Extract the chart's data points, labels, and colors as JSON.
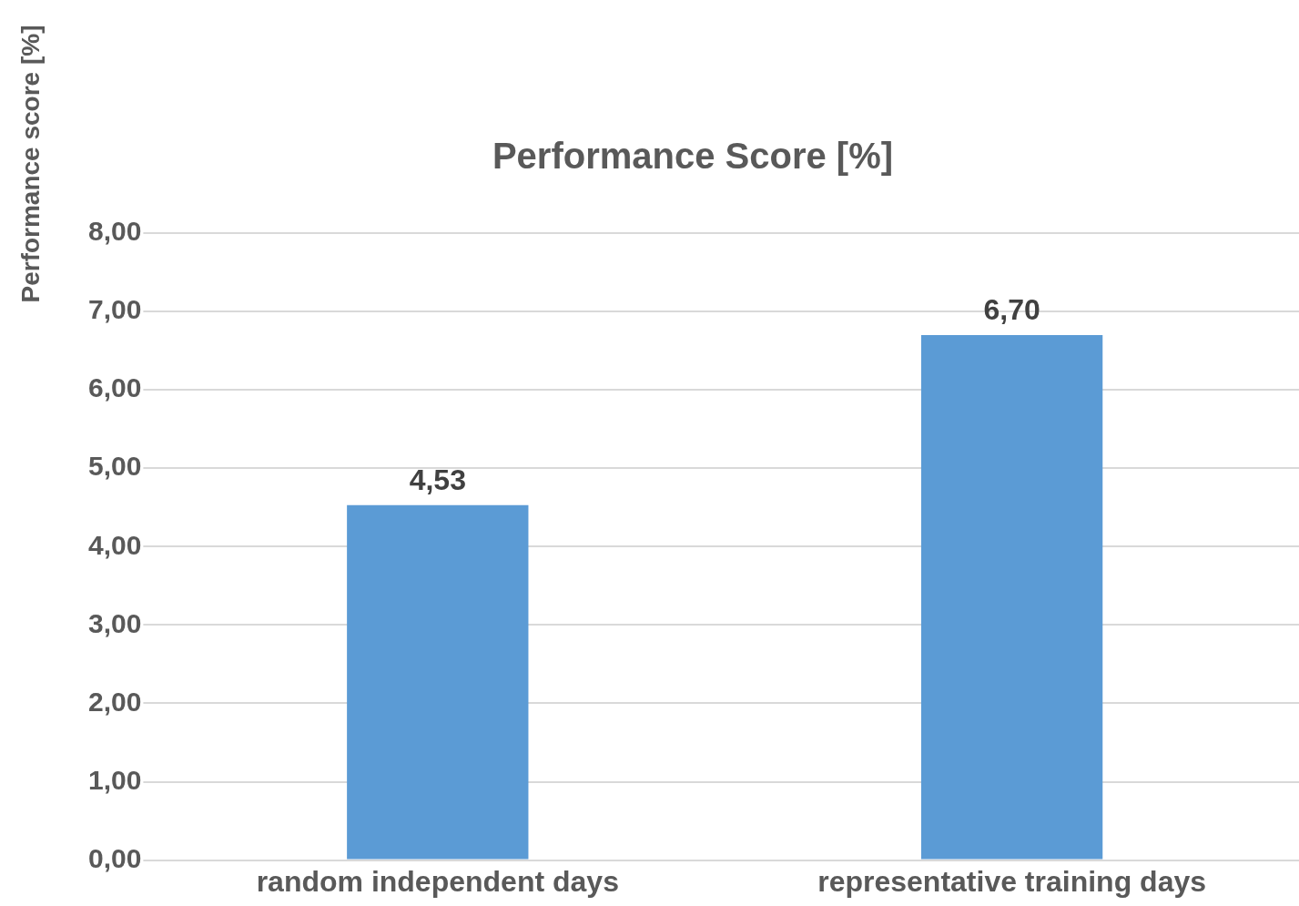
{
  "chart_data": {
    "type": "bar",
    "title": "Performance Score [%]",
    "ylabel": "Performance score [%]",
    "categories": [
      "random independent days",
      "representative training days"
    ],
    "values": [
      4.53,
      6.7
    ],
    "color": "#5b9bd5",
    "value_labels": [
      "4,53",
      "6,70"
    ],
    "ylim": [
      0,
      8
    ],
    "yticks": [
      {
        "value": 0,
        "label": "0,00"
      },
      {
        "value": 1,
        "label": "1,00"
      },
      {
        "value": 2,
        "label": "2,00"
      },
      {
        "value": 3,
        "label": "3,00"
      },
      {
        "value": 4,
        "label": "4,00"
      },
      {
        "value": 5,
        "label": "5,00"
      },
      {
        "value": 6,
        "label": "6,00"
      },
      {
        "value": 7,
        "label": "7,00"
      },
      {
        "value": 8,
        "label": "8,00"
      }
    ],
    "grid": "y",
    "legend": false
  }
}
